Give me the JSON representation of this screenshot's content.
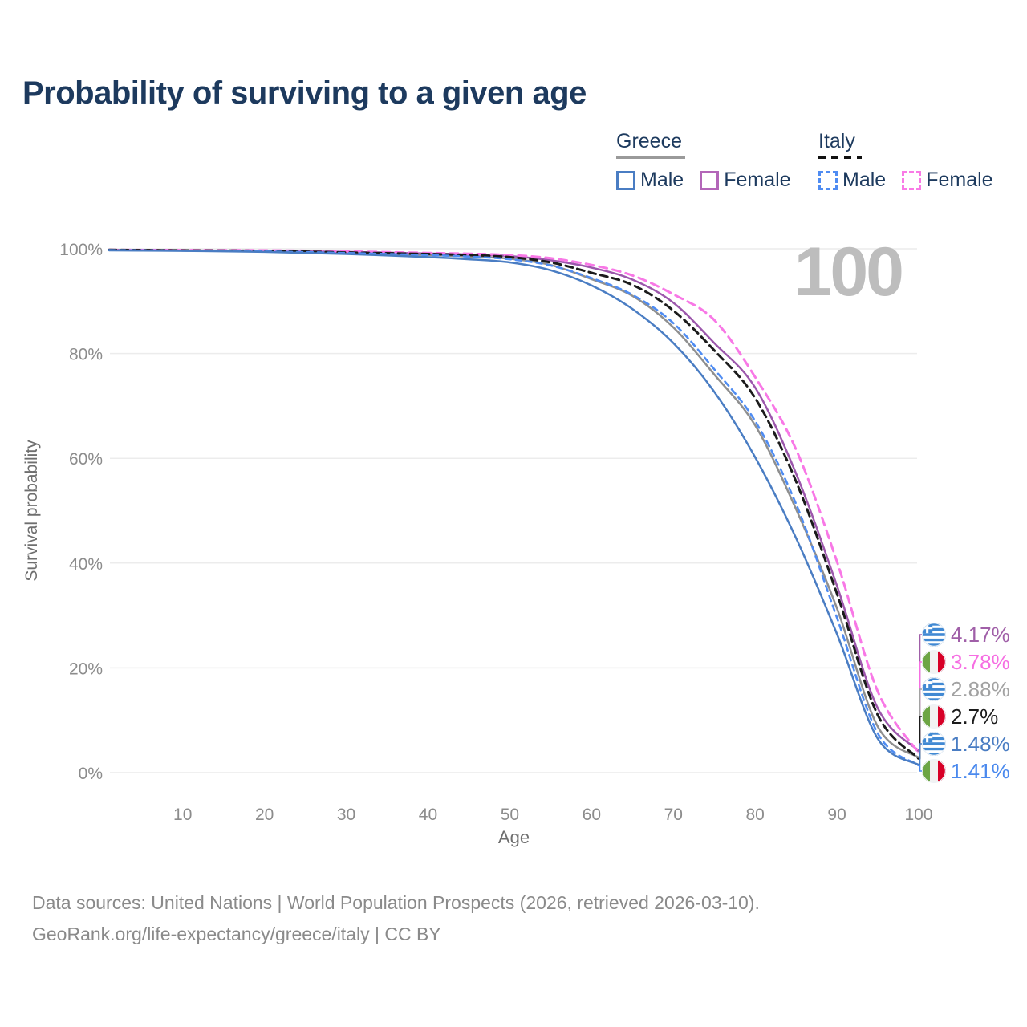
{
  "title": "Probability of surviving to a given age",
  "watermark_age": "100",
  "legend": {
    "greece": {
      "label": "Greece",
      "male": "Male",
      "female": "Female",
      "line_color": "#9a9a9a",
      "male_color": "#4a7dc3",
      "female_color": "#b366b8"
    },
    "italy": {
      "label": "Italy",
      "male": "Male",
      "female": "Female",
      "line_color": "#111111",
      "male_color": "#4f8cf2",
      "female_color": "#f97ae6"
    }
  },
  "chart_data": {
    "type": "line",
    "title": "Probability of surviving to a given age",
    "xlabel": "Age",
    "ylabel": "Survival probability",
    "xlim": [
      1,
      100
    ],
    "ylim": [
      0,
      100
    ],
    "grid": "horizontal",
    "legend_position": "top-right",
    "x_ticks": [
      10,
      20,
      30,
      40,
      50,
      60,
      70,
      80,
      90,
      100
    ],
    "y_ticks": [
      {
        "value": 0,
        "label": "0%"
      },
      {
        "value": 20,
        "label": "20%"
      },
      {
        "value": 40,
        "label": "40%"
      },
      {
        "value": 60,
        "label": "60%"
      },
      {
        "value": 80,
        "label": "80%"
      },
      {
        "value": 100,
        "label": "100%"
      }
    ],
    "x": [
      1,
      10,
      20,
      30,
      40,
      45,
      50,
      55,
      60,
      65,
      70,
      75,
      80,
      85,
      90,
      95,
      100
    ],
    "series": [
      {
        "id": "greece-female",
        "name": "Greece Female",
        "country": "Greece",
        "sex": "Female",
        "color": "#9c57ac",
        "dash": null,
        "width": 2.5,
        "end_label": "4.17%",
        "values": [
          99.8,
          99.7,
          99.6,
          99.4,
          99.1,
          98.9,
          98.6,
          97.8,
          96.4,
          94.1,
          89.7,
          82.0,
          73.5,
          57.1,
          35.7,
          12.3,
          4.17
        ]
      },
      {
        "id": "italy-female",
        "name": "Italy Female",
        "country": "Italy",
        "sex": "Female",
        "color": "#f878e6",
        "dash": "10 7",
        "width": 3,
        "end_label": "3.78%",
        "values": [
          99.8,
          99.75,
          99.7,
          99.5,
          99.2,
          99.05,
          98.8,
          98.2,
          96.9,
          94.9,
          91.3,
          86.4,
          75.5,
          61.7,
          40.3,
          15.5,
          3.78
        ]
      },
      {
        "id": "greece-total",
        "name": "Greece (both sexes)",
        "country": "Greece",
        "sex": "Both",
        "color": "#8f8f8f",
        "dash": null,
        "width": 2.5,
        "end_label": "2.88%",
        "values": [
          99.75,
          99.65,
          99.5,
          99.2,
          98.8,
          98.5,
          98.1,
          96.9,
          94.2,
          91.0,
          85.0,
          76.0,
          66.3,
          50.3,
          31.4,
          8.8,
          2.88
        ]
      },
      {
        "id": "italy-total",
        "name": "Italy (both sexes)",
        "country": "Italy",
        "sex": "Both",
        "color": "#1b1b1b",
        "dash": "9 6",
        "width": 3,
        "end_label": "2.7%",
        "values": [
          99.8,
          99.7,
          99.6,
          99.3,
          99.0,
          98.8,
          98.4,
          97.4,
          95.4,
          93.1,
          88.2,
          80.6,
          71.5,
          55.6,
          34.2,
          11.0,
          2.7
        ]
      },
      {
        "id": "greece-male",
        "name": "Greece Male",
        "country": "Greece",
        "sex": "Male",
        "color": "#4a7dc3",
        "dash": null,
        "width": 2.5,
        "end_label": "1.48%",
        "values": [
          99.7,
          99.6,
          99.4,
          99.0,
          98.4,
          98.0,
          97.4,
          95.9,
          93.0,
          88.5,
          82.0,
          72.7,
          60.2,
          44.8,
          26.5,
          6.5,
          1.48
        ]
      },
      {
        "id": "italy-male",
        "name": "Italy Male",
        "country": "Italy",
        "sex": "Male",
        "color": "#4f8cf2",
        "dash": "7 6",
        "width": 2.6,
        "end_label": "1.41%",
        "values": [
          99.75,
          99.65,
          99.5,
          99.2,
          98.8,
          98.5,
          98.0,
          96.8,
          94.4,
          91.2,
          85.8,
          77.0,
          67.1,
          51.3,
          29.6,
          7.5,
          1.41
        ]
      }
    ],
    "draw_order": [
      "greece-total",
      "greece-female",
      "italy-female",
      "italy-total",
      "italy-male",
      "greece-male"
    ]
  },
  "end_labels": [
    {
      "series": "greece-female",
      "flag": "greece",
      "value": "4.17%",
      "color": "#a05fa8"
    },
    {
      "series": "italy-female",
      "flag": "italy",
      "value": "3.78%",
      "color": "#f66ee2"
    },
    {
      "series": "greece-total",
      "flag": "greece",
      "value": "2.88%",
      "color": "#a2a2a2"
    },
    {
      "series": "italy-total",
      "flag": "italy",
      "value": "2.7%",
      "color": "#1b1b1b"
    },
    {
      "series": "greece-male",
      "flag": "greece",
      "value": "1.48%",
      "color": "#4a7dc3"
    },
    {
      "series": "italy-male",
      "flag": "italy",
      "value": "1.41%",
      "color": "#4a89ee"
    }
  ],
  "footer": {
    "line1": "Data sources: United Nations | World Population Prospects (2026, retrieved 2026-03-10).",
    "line2": "GeoRank.org/life-expectancy/greece/italy | CC BY"
  }
}
